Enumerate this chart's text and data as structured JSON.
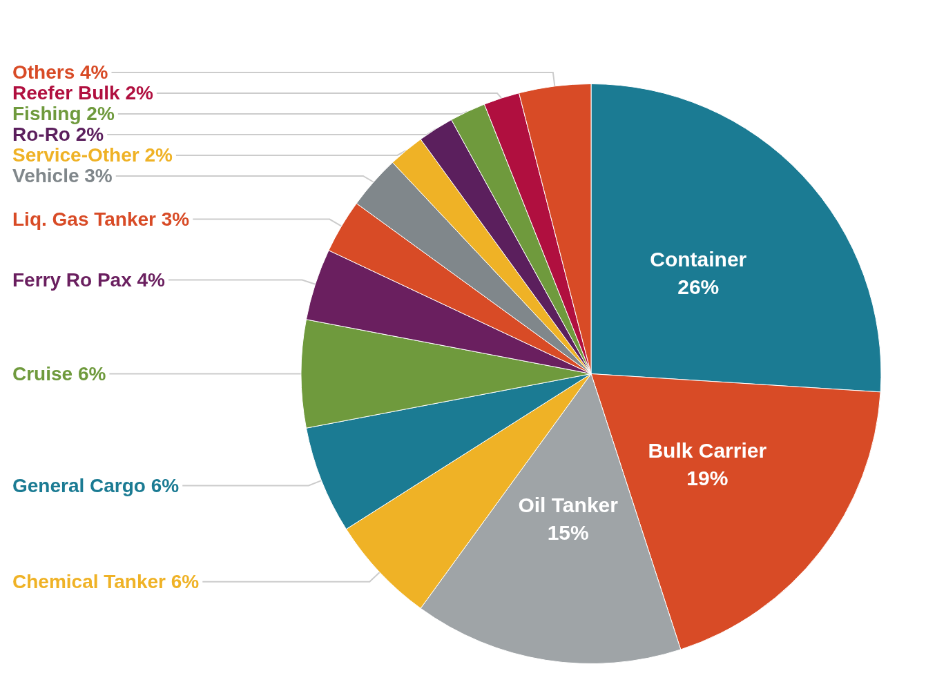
{
  "chart_data": {
    "type": "pie",
    "categories": [
      "Container",
      "Bulk Carrier",
      "Oil Tanker",
      "Chemical Tanker",
      "General Cargo",
      "Cruise",
      "Ferry Ro Pax",
      "Liq. Gas Tanker",
      "Vehicle",
      "Service-Other",
      "Ro-Ro",
      "Fishing",
      "Reefer Bulk",
      "Others"
    ],
    "values": [
      26,
      19,
      15,
      6,
      6,
      6,
      4,
      3,
      3,
      2,
      2,
      2,
      2,
      4
    ],
    "value_labels": [
      "26%",
      "19%",
      "15%",
      "6%",
      "6%",
      "6%",
      "4%",
      "3%",
      "3%",
      "2%",
      "2%",
      "2%",
      "2%",
      "4%"
    ],
    "colors": [
      "#1b7b93",
      "#d84b26",
      "#9fa4a7",
      "#efb226",
      "#1b7b93",
      "#6f9a3d",
      "#6a1f5f",
      "#d84b26",
      "#80878b",
      "#efb226",
      "#5b1f5d",
      "#6f9a3d",
      "#b00f3f",
      "#d84b26"
    ]
  }
}
